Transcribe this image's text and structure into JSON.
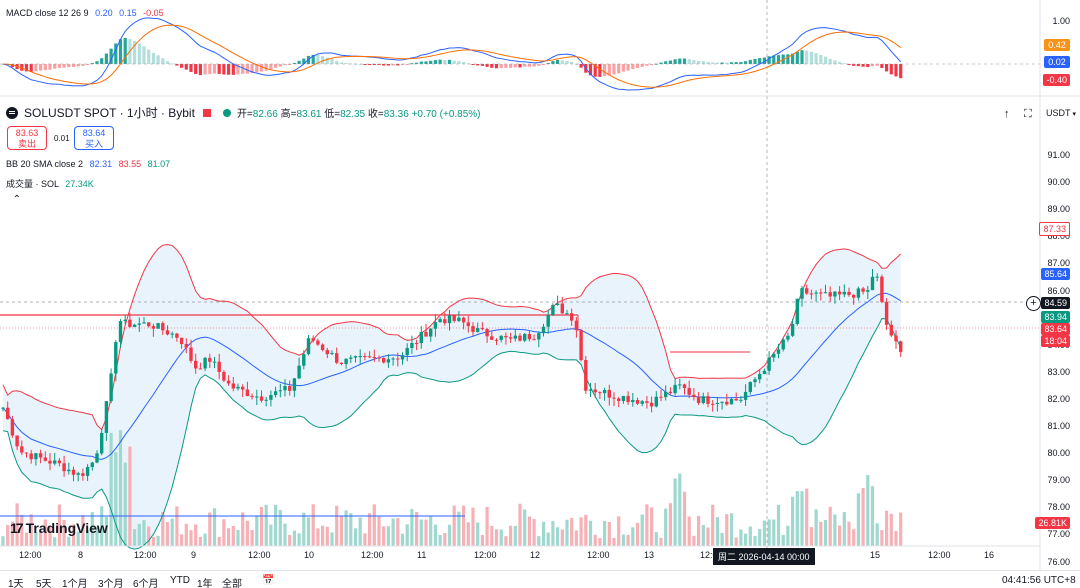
{
  "macd": {
    "label": "MACD close 12 26 9",
    "v1": "0.20",
    "v2": "0.15",
    "v3": "-0.05",
    "axis": [
      "1.00",
      "0.42",
      "0.02",
      "-0.40"
    ],
    "tag_colors": {
      "pos": "#f7931a",
      "zero": "#2962ff",
      "neg": "#f23645"
    }
  },
  "header": {
    "symbol": "SOLUSDT SPOT · 1小时 · Bybit",
    "open_label": "开=",
    "open": "82.66",
    "high_label": "高=",
    "high": "83.61",
    "low_label": "低=",
    "low": "82.35",
    "close_label": "收=",
    "close": "83.36",
    "change": "+0.70 (+0.85%)"
  },
  "trade": {
    "sell_price": "83.63",
    "sell_label": "卖出",
    "spread": "0.01",
    "buy_price": "83.64",
    "buy_label": "买入"
  },
  "bb": {
    "label": "BB 20 SMA close 2",
    "v1": "82.31",
    "v2": "83.55",
    "v3": "81.07"
  },
  "volume": {
    "label": "成交量 · SOL",
    "value": "27.34K"
  },
  "currency": "USDT",
  "price_axis": [
    "91.00",
    "90.00",
    "89.00",
    "88.00",
    "87.00",
    "86.00",
    "85.00",
    "84.00",
    "83.00",
    "82.00",
    "81.00",
    "80.00",
    "79.00",
    "78.00",
    "77.00",
    "76.00"
  ],
  "price_tags": {
    "upper": "87.33",
    "mid": "85.64",
    "crosshair": "84.59",
    "last": "83.94",
    "bid": "83.64",
    "countdown": "18:04",
    "vol": "26.81K"
  },
  "time_axis": [
    "12:00",
    "8",
    "12:00",
    "9",
    "12:00",
    "10",
    "12:00",
    "11",
    "12:00",
    "12",
    "12:00",
    "13",
    "12:00",
    "15",
    "12:00",
    "16"
  ],
  "crosshair_time": "周二 2026-04-14   00:00",
  "logo": "TradingView",
  "timeframes": [
    "1天",
    "5天",
    "1个月",
    "3个月",
    "6个月",
    "YTD",
    "1年",
    "全部"
  ],
  "clock": "04:41:56 UTC+8",
  "colors": {
    "up": "#089981",
    "down": "#f23645",
    "bbUpper": "#f23645",
    "bbMid": "#2962ff",
    "bbLower": "#089981",
    "fill": "#e3f0fb"
  },
  "chart_data": {
    "type": "candlestick",
    "ylim": [
      76,
      91
    ],
    "candles": []
  }
}
